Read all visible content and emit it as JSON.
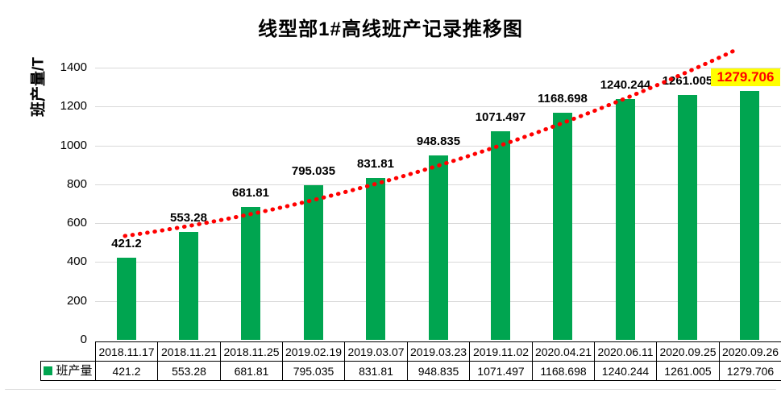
{
  "title": "线型部1#高线班产记录推移图",
  "y_axis_title": "班产量/T",
  "legend": {
    "label": "班产量"
  },
  "chart_data": {
    "type": "bar",
    "title": "线型部1#高线班产记录推移图",
    "xlabel": "",
    "ylabel": "班产量/T",
    "categories": [
      "2018.11.17",
      "2018.11.21",
      "2018.11.25",
      "2019.02.19",
      "2019.03.07",
      "2019.03.23",
      "2019.11.02",
      "2020.04.21",
      "2020.06.11",
      "2020.09.25",
      "2020.09.26"
    ],
    "series": [
      {
        "name": "班产量",
        "values": [
          421.2,
          553.28,
          681.81,
          795.035,
          831.81,
          948.835,
          1071.497,
          1168.698,
          1240.244,
          1261.005,
          1279.706
        ]
      }
    ],
    "value_labels": [
      "421.2",
      "553.28",
      "681.81",
      "795.035",
      "831.81",
      "948.835",
      "1071.497",
      "1168.698",
      "1240.244",
      "1261.005",
      "1279.706"
    ],
    "ylim": [
      0,
      1400
    ],
    "yticks": [
      0,
      200,
      400,
      600,
      800,
      1000,
      1200,
      1400
    ],
    "grid": true,
    "data_table": true,
    "legend_position": "bottom-table",
    "highlighted_index": 10,
    "trendline": {
      "style": "dotted",
      "shape": "exponential"
    },
    "colors": {
      "bar": "#00A550",
      "trendline": "#FF0000",
      "gridline": "#D9D9D9",
      "highlight_bg": "#FFFF00",
      "highlight_text": "#FF0000",
      "axis_text": "#000000",
      "table_border": "#000000",
      "background": "#FFFFFF"
    }
  }
}
